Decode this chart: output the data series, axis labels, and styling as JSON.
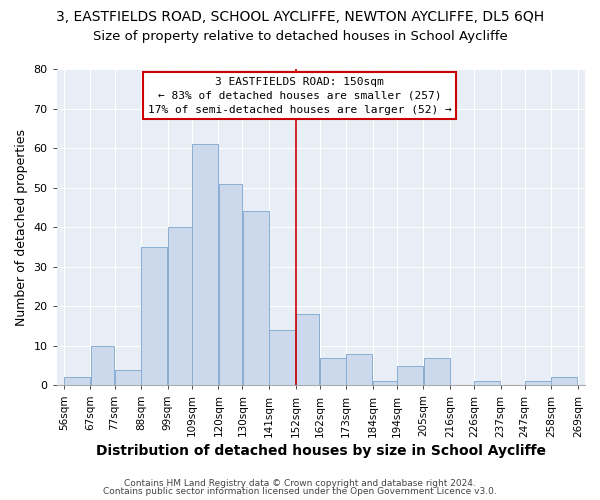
{
  "title": "3, EASTFIELDS ROAD, SCHOOL AYCLIFFE, NEWTON AYCLIFFE, DL5 6QH",
  "subtitle": "Size of property relative to detached houses in School Aycliffe",
  "xlabel": "Distribution of detached houses by size in School Aycliffe",
  "ylabel": "Number of detached properties",
  "bin_edges": [
    56,
    67,
    77,
    88,
    99,
    109,
    120,
    130,
    141,
    152,
    162,
    173,
    184,
    194,
    205,
    216,
    226,
    237,
    247,
    258,
    269
  ],
  "bar_heights": [
    2,
    10,
    4,
    35,
    40,
    61,
    51,
    44,
    14,
    18,
    7,
    8,
    1,
    5,
    7,
    0,
    1,
    0,
    1,
    2
  ],
  "bar_color": "#ccd9ed",
  "bar_edge_color": "#8aafd4",
  "vline_x": 152,
  "vline_color": "#cc0000",
  "ylim": [
    0,
    80
  ],
  "annotation_title": "3 EASTFIELDS ROAD: 150sqm",
  "annotation_line1": "← 83% of detached houses are smaller (257)",
  "annotation_line2": "17% of semi-detached houses are larger (52) →",
  "annotation_box_color": "#ffffff",
  "annotation_box_edge": "#cc0000",
  "footer1": "Contains HM Land Registry data © Crown copyright and database right 2024.",
  "footer2": "Contains public sector information licensed under the Open Government Licence v3.0.",
  "fig_bg_color": "#ffffff",
  "plot_bg_color": "#e8eef5",
  "grid_color": "#ffffff",
  "title_fontsize": 10,
  "subtitle_fontsize": 9.5,
  "xlabel_fontsize": 10,
  "ylabel_fontsize": 9,
  "tick_fontsize": 7.5
}
